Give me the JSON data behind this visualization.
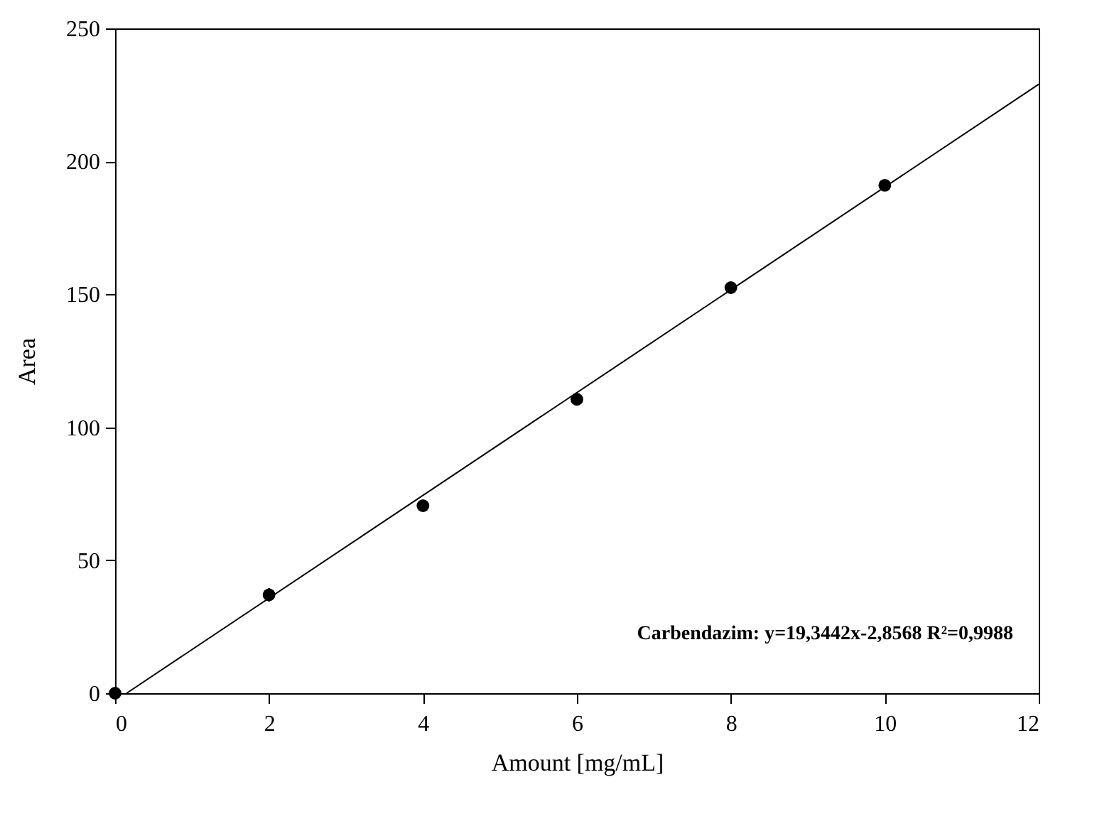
{
  "chart_data": {
    "type": "scatter",
    "xlabel": "Amount [mg/mL]",
    "ylabel": "Area",
    "x": [
      0,
      2,
      4,
      6,
      8,
      10
    ],
    "series": [
      {
        "color": "#000000",
        "values": [
          0,
          37,
          70.5,
          110.5,
          152.5,
          191
        ],
        "errors": [
          null,
          2.5,
          null,
          null,
          null,
          null
        ],
        "marker": "circle"
      },
      {
        "type": "line",
        "color": "#000000",
        "x": [
          0.15,
          12
        ],
        "values": [
          0,
          229
        ],
        "marker": "none",
        "line_style": "solid"
      }
    ],
    "xlim": [
      0,
      12
    ],
    "xticks": [
      0,
      2,
      4,
      6,
      8,
      10,
      12
    ],
    "ylim": [
      0,
      250
    ],
    "yticks": [
      0,
      50,
      100,
      150,
      200,
      250
    ],
    "grid": false,
    "annotations": [
      "Carbendazim: y=19,3442x-2,8568  R²=0,9988"
    ]
  }
}
